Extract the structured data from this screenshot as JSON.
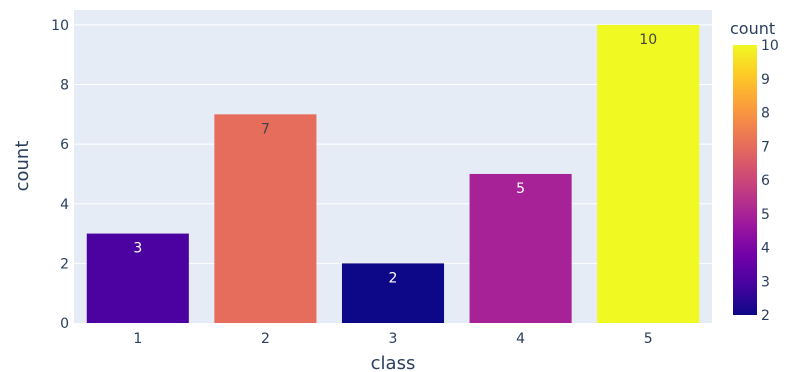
{
  "chart_data": {
    "type": "bar",
    "xlabel": "class",
    "ylabel": "count",
    "categories": [
      "1",
      "2",
      "3",
      "4",
      "5"
    ],
    "values": [
      3,
      7,
      2,
      5,
      10
    ],
    "bar_colors": [
      "#4c02a1",
      "#e66c5c",
      "#0d0887",
      "#a72197",
      "#f0f921"
    ],
    "label_colors": [
      "#ffffff",
      "#444444",
      "#ffffff",
      "#ffffff",
      "#444444"
    ],
    "ylim": [
      0,
      10.5
    ],
    "yticks": [
      0,
      2,
      4,
      6,
      8,
      10
    ],
    "grid": true,
    "plot_bg": "#e5ecf6",
    "colorbar": {
      "title": "count",
      "min": 2,
      "max": 10,
      "ticks": [
        2,
        3,
        4,
        5,
        6,
        7,
        8,
        9,
        10
      ],
      "colorscale": [
        "#0d0887",
        "#46039f",
        "#7201a8",
        "#9c179e",
        "#bd3786",
        "#d8576b",
        "#ed7953",
        "#fb9f3a",
        "#fdca26",
        "#f0f921"
      ]
    }
  }
}
